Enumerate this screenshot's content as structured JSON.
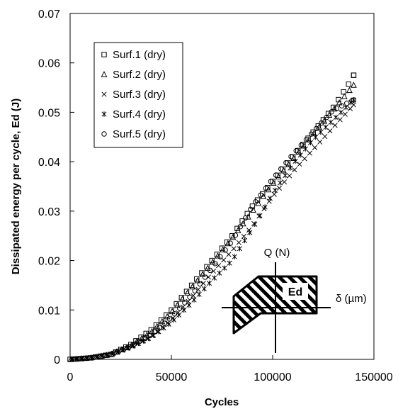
{
  "chart_data": {
    "type": "scatter",
    "title": "",
    "xlabel": "Cycles",
    "ylabel": "Dissipated energy per cycle, Ed (J)",
    "xlim": [
      0,
      150000
    ],
    "ylim": [
      0,
      0.07
    ],
    "x_ticks": [
      0,
      50000,
      100000,
      150000
    ],
    "x_tick_labels": [
      "0",
      "50000",
      "100000",
      "150000"
    ],
    "y_ticks": [
      0,
      0.01,
      0.02,
      0.03,
      0.04,
      0.05,
      0.06,
      0.07
    ],
    "y_tick_labels": [
      "0",
      "0.01",
      "0.02",
      "0.03",
      "0.04",
      "0.05",
      "0.06",
      "0.07"
    ],
    "grid": false,
    "legend_position": "top-left",
    "series": [
      {
        "name": "Surf.1 (dry)",
        "marker": "square",
        "points": [
          [
            0,
            0
          ],
          [
            10000,
            0.0003
          ],
          [
            20000,
            0.001
          ],
          [
            30000,
            0.003
          ],
          [
            40000,
            0.006
          ],
          [
            50000,
            0.01
          ],
          [
            60000,
            0.015
          ],
          [
            70000,
            0.02
          ],
          [
            80000,
            0.025
          ],
          [
            90000,
            0.031
          ],
          [
            100000,
            0.036
          ],
          [
            110000,
            0.041
          ],
          [
            120000,
            0.046
          ],
          [
            130000,
            0.051
          ],
          [
            138000,
            0.056
          ],
          [
            140000,
            0.0575
          ]
        ]
      },
      {
        "name": "Surf.2 (dry)",
        "marker": "triangle",
        "points": [
          [
            0,
            0
          ],
          [
            10000,
            0.0003
          ],
          [
            20000,
            0.001
          ],
          [
            30000,
            0.0028
          ],
          [
            40000,
            0.0055
          ],
          [
            50000,
            0.0095
          ],
          [
            60000,
            0.0145
          ],
          [
            70000,
            0.0195
          ],
          [
            80000,
            0.0245
          ],
          [
            90000,
            0.03
          ],
          [
            100000,
            0.0355
          ],
          [
            110000,
            0.0405
          ],
          [
            120000,
            0.0455
          ],
          [
            130000,
            0.0505
          ],
          [
            138000,
            0.0545
          ],
          [
            140000,
            0.0555
          ]
        ]
      },
      {
        "name": "Surf.3 (dry)",
        "marker": "cross",
        "points": [
          [
            0,
            0
          ],
          [
            10000,
            0.0003
          ],
          [
            20000,
            0.0009
          ],
          [
            30000,
            0.0025
          ],
          [
            40000,
            0.0045
          ],
          [
            50000,
            0.008
          ],
          [
            60000,
            0.0125
          ],
          [
            70000,
            0.0175
          ],
          [
            80000,
            0.022
          ],
          [
            90000,
            0.027
          ],
          [
            100000,
            0.033
          ],
          [
            110000,
            0.038
          ],
          [
            120000,
            0.0425
          ],
          [
            130000,
            0.047
          ],
          [
            140000,
            0.0515
          ]
        ]
      },
      {
        "name": "Surf.4 (dry)",
        "marker": "asterisk",
        "points": [
          [
            0,
            0
          ],
          [
            10000,
            0.0003
          ],
          [
            20000,
            0.001
          ],
          [
            30000,
            0.0025
          ],
          [
            40000,
            0.0045
          ],
          [
            50000,
            0.0075
          ],
          [
            60000,
            0.0115
          ],
          [
            70000,
            0.016
          ],
          [
            80000,
            0.02
          ],
          [
            90000,
            0.0265
          ],
          [
            100000,
            0.0335
          ],
          [
            110000,
            0.0395
          ],
          [
            120000,
            0.0445
          ],
          [
            130000,
            0.0485
          ],
          [
            140000,
            0.0525
          ]
        ]
      },
      {
        "name": "Surf.5 (dry)",
        "marker": "circle",
        "points": [
          [
            0,
            0
          ],
          [
            10000,
            0.0003
          ],
          [
            20000,
            0.001
          ],
          [
            30000,
            0.0027
          ],
          [
            40000,
            0.005
          ],
          [
            50000,
            0.0085
          ],
          [
            60000,
            0.013
          ],
          [
            70000,
            0.0185
          ],
          [
            80000,
            0.024
          ],
          [
            90000,
            0.031
          ],
          [
            100000,
            0.0365
          ],
          [
            110000,
            0.0415
          ],
          [
            120000,
            0.046
          ],
          [
            130000,
            0.0505
          ],
          [
            140000,
            0.0525
          ]
        ]
      }
    ],
    "inset": {
      "description": "hysteresis loop schematic",
      "y_axis_label": "Q (N)",
      "x_axis_label": "δ (µm)",
      "area_label": "Ed"
    }
  }
}
